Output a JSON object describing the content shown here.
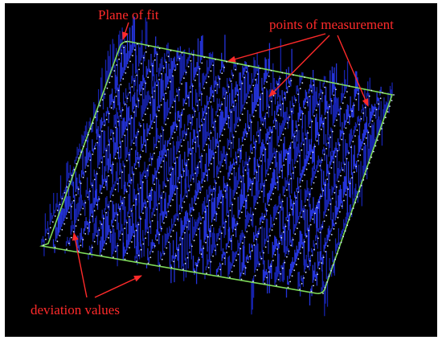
{
  "annotations": {
    "plane": "Plane of fit",
    "points": "points of measurement",
    "deviation": "deviation values"
  }
}
